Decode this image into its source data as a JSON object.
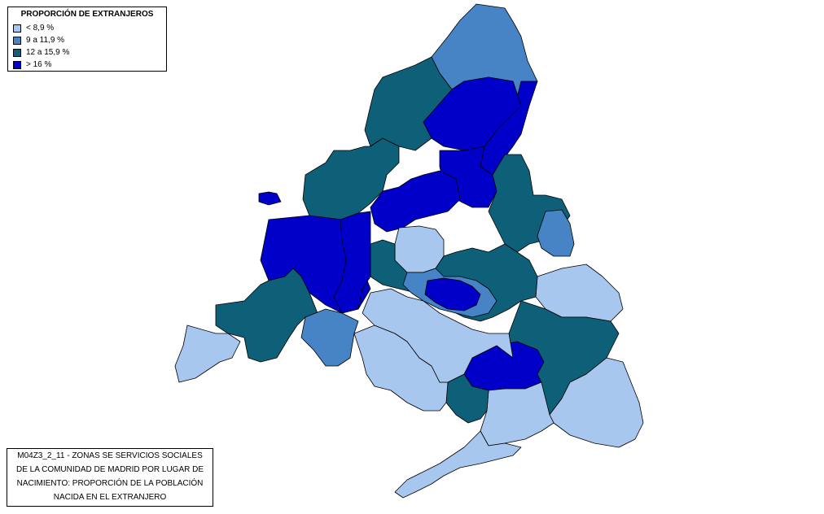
{
  "legend": {
    "title": "PROPORCIÓN DE EXTRANJEROS",
    "items": [
      {
        "label": "< 8,9 %",
        "color": "#a7c7ee"
      },
      {
        "label": "9 a 11,9 %",
        "color": "#4684c5"
      },
      {
        "label": "12 a 15,9 %",
        "color": "#0e5f78"
      },
      {
        "label": "> 16 %",
        "color": "#0000c8"
      }
    ]
  },
  "caption": {
    "lines": [
      "M04Z3_2_11 - ZONAS SE SERVICIOS SOCIALES",
      "DE LA COMUNIDAD DE MADRID POR LUGAR DE",
      "NACIMIENTO: PROPORCIÓN DE LA POBLACIÓN",
      "NACIDA EN EL EXTRANJERO"
    ]
  },
  "map": {
    "regions": [
      {
        "name": "region-north-mid",
        "cls": 1
      },
      {
        "name": "region-north-west",
        "cls": 2
      },
      {
        "name": "region-north-east-strip",
        "cls": 3
      },
      {
        "name": "region-west-large",
        "cls": 3
      },
      {
        "name": "region-west-mid",
        "cls": 2
      },
      {
        "name": "region-south-west-mid",
        "cls": 2
      },
      {
        "name": "region-far-west",
        "cls": 0
      },
      {
        "name": "region-north-centre",
        "cls": 3
      },
      {
        "name": "region-central-north-light",
        "cls": 0
      },
      {
        "name": "region-east-light",
        "cls": 0
      },
      {
        "name": "region-east-mid",
        "cls": 2
      },
      {
        "name": "region-east-strip",
        "cls": 1
      },
      {
        "name": "region-south-east-light",
        "cls": 0
      },
      {
        "name": "region-south-light",
        "cls": 0
      },
      {
        "name": "region-south-dark",
        "cls": 3
      },
      {
        "name": "region-south-teal",
        "cls": 2
      },
      {
        "name": "region-south-tail",
        "cls": 0
      },
      {
        "name": "region-south-west-light",
        "cls": 0
      },
      {
        "name": "region-west-blue",
        "cls": 1
      },
      {
        "name": "region-central-metro",
        "cls": 3
      },
      {
        "name": "region-metro-ring",
        "cls": 1
      },
      {
        "name": "region-north-east-teal",
        "cls": 2
      },
      {
        "name": "region-south-centre-light",
        "cls": 0
      },
      {
        "name": "region-south-centre-teal",
        "cls": 2
      },
      {
        "name": "region-north-west-dark",
        "cls": 3
      }
    ]
  }
}
